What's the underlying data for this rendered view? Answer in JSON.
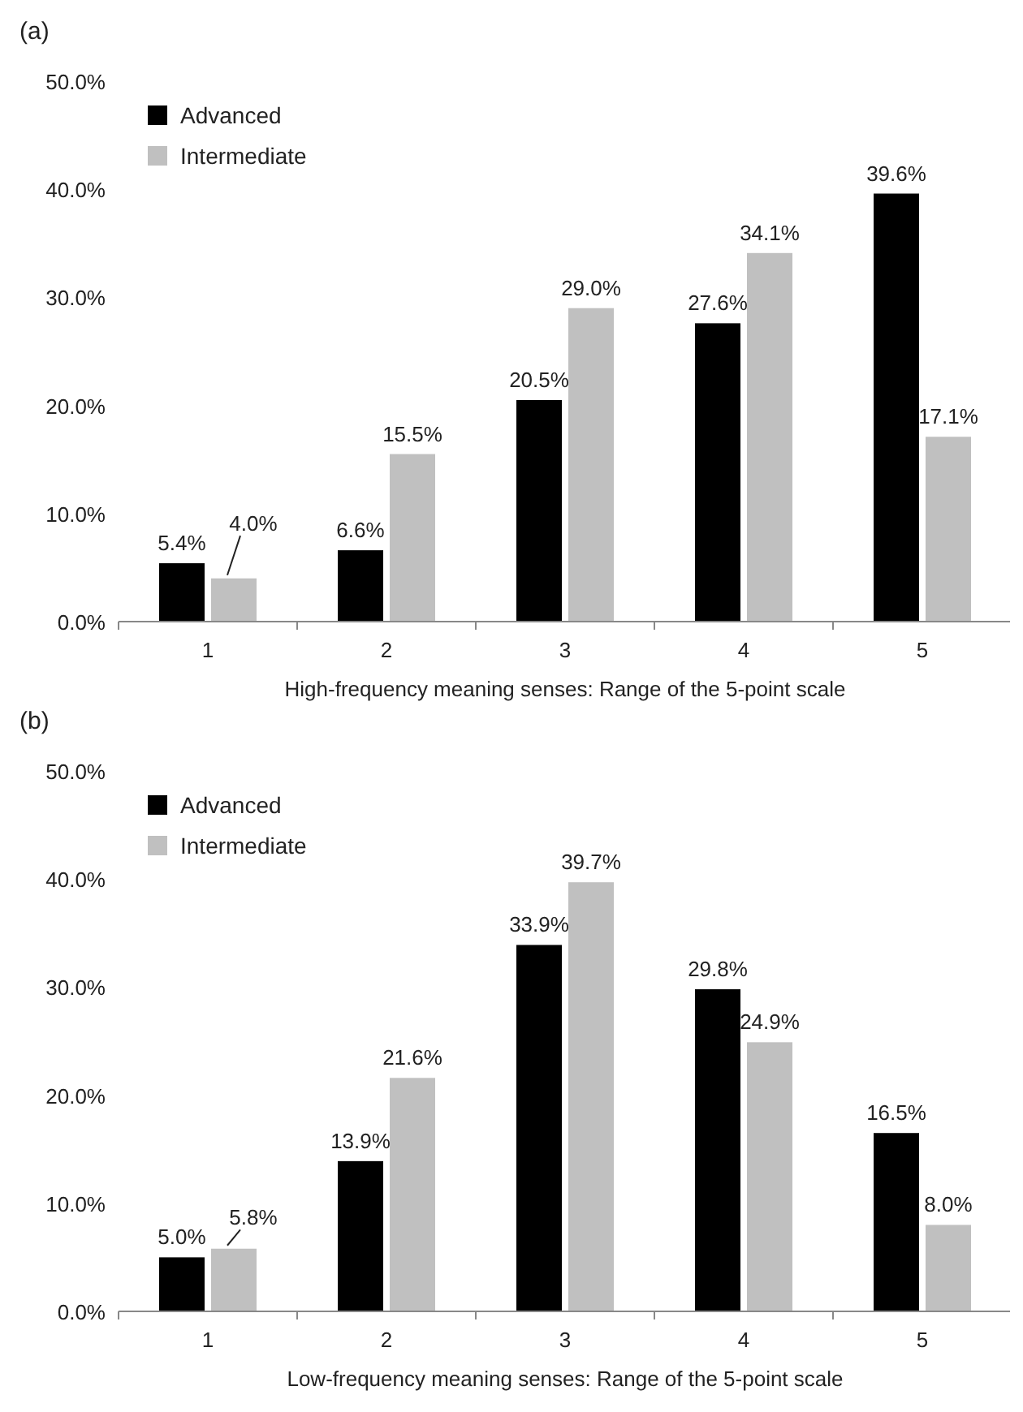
{
  "chart_data": [
    {
      "type": "bar",
      "title": "(a)",
      "xlabel": "High-frequency meaning senses: Range of the 5-point scale",
      "categories": [
        "1",
        "2",
        "3",
        "4",
        "5"
      ],
      "series": [
        {
          "name": "Advanced",
          "color": "#000000",
          "values": [
            5.4,
            6.6,
            20.5,
            27.6,
            39.6
          ],
          "value_labels": [
            "5.4%",
            "6.6%",
            "20.5%",
            "27.6%",
            "39.6%"
          ]
        },
        {
          "name": "Intermediate",
          "color": "#c0c0c0",
          "values": [
            4.0,
            15.5,
            29.0,
            34.1,
            17.1
          ],
          "value_labels": [
            "4.0%",
            "15.5%",
            "29.0%",
            "34.1%",
            "17.1%"
          ]
        }
      ],
      "ylim": [
        0,
        50
      ],
      "yticks": [
        {
          "value": 0,
          "label": "0.0%"
        },
        {
          "value": 10,
          "label": "10.0%"
        },
        {
          "value": 20,
          "label": "20.0%"
        },
        {
          "value": 30,
          "label": "30.0%"
        },
        {
          "value": 40,
          "label": "40.0%"
        },
        {
          "value": 50,
          "label": "50.0%"
        }
      ],
      "grid": false,
      "legend": "top left"
    },
    {
      "type": "bar",
      "title": "(b)",
      "xlabel": "Low-frequency meaning senses: Range of the 5-point scale",
      "categories": [
        "1",
        "2",
        "3",
        "4",
        "5"
      ],
      "series": [
        {
          "name": "Advanced",
          "color": "#000000",
          "values": [
            5.0,
            13.9,
            33.9,
            29.8,
            16.5
          ],
          "value_labels": [
            "5.0%",
            "13.9%",
            "33.9%",
            "29.8%",
            "16.5%"
          ]
        },
        {
          "name": "Intermediate",
          "color": "#c0c0c0",
          "values": [
            5.8,
            21.6,
            39.7,
            24.9,
            8.0
          ],
          "value_labels": [
            "5.8%",
            "21.6%",
            "39.7%",
            "24.9%",
            "8.0%"
          ]
        }
      ],
      "ylim": [
        0,
        50
      ],
      "yticks": [
        {
          "value": 0,
          "label": "0.0%"
        },
        {
          "value": 10,
          "label": "10.0%"
        },
        {
          "value": 20,
          "label": "20.0%"
        },
        {
          "value": 30,
          "label": "30.0%"
        },
        {
          "value": 40,
          "label": "40.0%"
        },
        {
          "value": 50,
          "label": "50.0%"
        }
      ],
      "grid": false,
      "legend": "top left"
    }
  ]
}
